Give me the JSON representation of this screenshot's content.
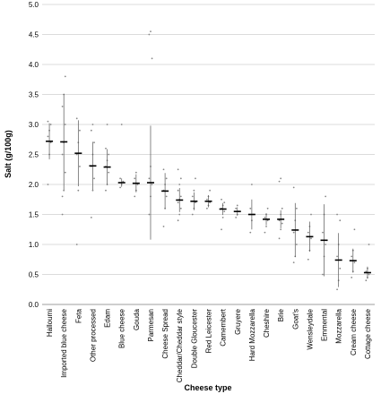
{
  "chart_data": {
    "type": "strip",
    "x_label": "Cheese type",
    "y_label": "Salt (g/100g)",
    "categories": [
      "Halloumi",
      "Imported blue cheese",
      "Feta",
      "Other processed",
      "Edam",
      "Blue cheese",
      "Gouda",
      "Parmesan",
      "Cheese Spread",
      "Cheddar/Cheddar style",
      "Double Gloucester",
      "Red Leicester",
      "Camembert",
      "Gruyere",
      "Hard Mozzarella",
      "Cheshire",
      "Brie",
      "Goat's",
      "Wensleydale",
      "Emmental",
      "Mozzarella",
      "Cream cheese",
      "Cottage cheese"
    ],
    "means": [
      2.72,
      2.71,
      2.52,
      2.31,
      2.29,
      2.03,
      2.02,
      2.03,
      1.89,
      1.74,
      1.72,
      1.72,
      1.59,
      1.55,
      1.5,
      1.42,
      1.42,
      1.24,
      1.13,
      1.07,
      0.74,
      0.73,
      0.53
    ],
    "errors": [
      0.3,
      0.8,
      0.55,
      0.4,
      0.3,
      0.07,
      0.15,
      0.95,
      0.3,
      0.2,
      0.15,
      0.1,
      0.1,
      0.07,
      0.25,
      0.1,
      0.15,
      0.45,
      0.25,
      0.6,
      0.45,
      0.2,
      0.1
    ],
    "points": [
      [
        2.0,
        2.5,
        2.7,
        2.8,
        2.9,
        3.0,
        3.05
      ],
      [
        1.8,
        1.9,
        2.2,
        2.5,
        2.7,
        3.0,
        3.3,
        3.5,
        3.8,
        1.5
      ],
      [
        1.0,
        1.9,
        2.3,
        2.5,
        2.7,
        2.9,
        3.1
      ],
      [
        1.45,
        1.9,
        2.1,
        2.3,
        2.5,
        2.7,
        2.9,
        3.0
      ],
      [
        1.9,
        2.0,
        2.2,
        2.3,
        2.4,
        2.5,
        2.6,
        3.0
      ],
      [
        1.95,
        2.0,
        2.05,
        2.1,
        3.0
      ],
      [
        1.8,
        1.9,
        2.0,
        2.1,
        2.2
      ],
      [
        1.5,
        1.8,
        2.0,
        2.1,
        2.3,
        4.1,
        4.5,
        4.55
      ],
      [
        1.3,
        1.6,
        1.8,
        1.9,
        2.0,
        2.1,
        2.25
      ],
      [
        1.4,
        1.5,
        1.6,
        1.7,
        1.75,
        1.8,
        1.9,
        2.0,
        2.1,
        2.25
      ],
      [
        1.5,
        1.6,
        1.7,
        1.8,
        1.9,
        2.1
      ],
      [
        1.6,
        1.65,
        1.7,
        1.75,
        1.8,
        1.9
      ],
      [
        1.25,
        1.45,
        1.55,
        1.6,
        1.65,
        1.7,
        1.75
      ],
      [
        1.45,
        1.5,
        1.55,
        1.6,
        1.65
      ],
      [
        1.2,
        1.4,
        1.5,
        1.6,
        2.0
      ],
      [
        1.2,
        1.3,
        1.4,
        1.45,
        1.5,
        1.6
      ],
      [
        1.1,
        1.25,
        1.35,
        1.4,
        1.5,
        1.6,
        2.05,
        2.1
      ],
      [
        0.7,
        0.8,
        1.0,
        1.2,
        1.4,
        1.6,
        1.95
      ],
      [
        0.75,
        0.9,
        1.1,
        1.2,
        1.3,
        1.5
      ],
      [
        0.5,
        0.8,
        1.0,
        1.2,
        1.5,
        1.8
      ],
      [
        0.25,
        0.4,
        0.6,
        0.8,
        1.0,
        1.4,
        1.5
      ],
      [
        0.45,
        0.55,
        0.7,
        0.8,
        0.9,
        1.25
      ],
      [
        0.4,
        0.45,
        0.5,
        0.55,
        0.6,
        1.0
      ]
    ],
    "ylim": [
      0,
      5
    ],
    "yticks": [
      {
        "value": 0,
        "label": "0.0"
      },
      {
        "value": 0.5,
        "label": "0.5"
      },
      {
        "value": 1,
        "label": "1.0"
      },
      {
        "value": 1.5,
        "label": "1.5"
      },
      {
        "value": 2,
        "label": "2.0"
      },
      {
        "value": 2.5,
        "label": "2.5"
      },
      {
        "value": 3,
        "label": "3.0"
      },
      {
        "value": 3.5,
        "label": "3.5"
      },
      {
        "value": 4,
        "label": "4.0"
      },
      {
        "value": 4.5,
        "label": "4.5"
      },
      {
        "value": 5,
        "label": "5.0"
      }
    ],
    "grid": true,
    "point_color": "#888888",
    "mean_color": "#000000"
  }
}
